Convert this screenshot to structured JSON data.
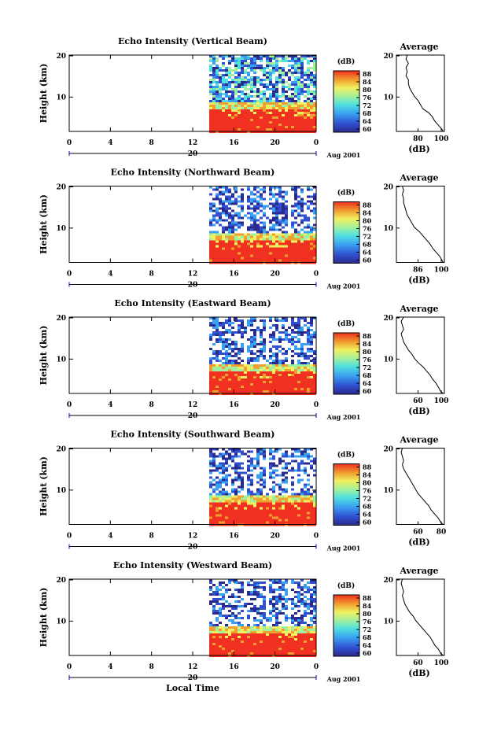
{
  "figure": {
    "xlabel": "Local Time",
    "date_label": "Aug 2001",
    "colorbar_unit": "(dB)",
    "colorbar_ticks": [
      "88",
      "84",
      "80",
      "76",
      "72",
      "68",
      "64",
      "60"
    ],
    "colormap": [
      "#2a2a8c",
      "#3050d0",
      "#3aa0f0",
      "#50e0e0",
      "#a0f0a0",
      "#f0f060",
      "#f0a030",
      "#f03020"
    ]
  },
  "chart_data": [
    {
      "type": "heatmap",
      "title": "Echo Intensity (Vertical Beam)",
      "ylabel": "Height (km)",
      "y_ticks": [
        "20",
        "10"
      ],
      "x_ticks": [
        "0",
        "4",
        "8",
        "12",
        "16",
        "20",
        "0"
      ],
      "x_day_label": "20",
      "average": {
        "title": "Average",
        "xlabel": "(dB)",
        "x_ticks": [
          "80",
          "100"
        ],
        "y_ticks": [
          "20",
          "10"
        ],
        "xlim": [
          60,
          100
        ],
        "ylim": [
          1.5,
          20
        ],
        "profile": [
          [
            1.5,
            99
          ],
          [
            2,
            98
          ],
          [
            3,
            95
          ],
          [
            4,
            92
          ],
          [
            5,
            90
          ],
          [
            6,
            87
          ],
          [
            7,
            82
          ],
          [
            8,
            80
          ],
          [
            9,
            78
          ],
          [
            10,
            75
          ],
          [
            11,
            73
          ],
          [
            12,
            71
          ],
          [
            13,
            70
          ],
          [
            14,
            70
          ],
          [
            15,
            68
          ],
          [
            16,
            69
          ],
          [
            17,
            68
          ],
          [
            18,
            70
          ],
          [
            19,
            68
          ],
          [
            20,
            69
          ]
        ]
      }
    },
    {
      "type": "heatmap",
      "title": "Echo Intensity (Northward Beam)",
      "ylabel": "Height (km)",
      "y_ticks": [
        "20",
        "10"
      ],
      "x_ticks": [
        "0",
        "4",
        "8",
        "12",
        "16",
        "20",
        "0"
      ],
      "x_day_label": "20",
      "average": {
        "title": "Average",
        "xlabel": "(dB)",
        "x_ticks": [
          "86",
          "100"
        ],
        "y_ticks": [
          "20",
          "10"
        ],
        "xlim": [
          60,
          100
        ],
        "ylim": [
          1.5,
          20
        ],
        "profile": [
          [
            1.5,
            99
          ],
          [
            2,
            98
          ],
          [
            3,
            96
          ],
          [
            4,
            93
          ],
          [
            5,
            90
          ],
          [
            6,
            88
          ],
          [
            7,
            85
          ],
          [
            8,
            82
          ],
          [
            9,
            79
          ],
          [
            10,
            75
          ],
          [
            11,
            73
          ],
          [
            12,
            71
          ],
          [
            13,
            69
          ],
          [
            14,
            68
          ],
          [
            15,
            67
          ],
          [
            16,
            66
          ],
          [
            17,
            66
          ],
          [
            18,
            65
          ],
          [
            19,
            66
          ],
          [
            20,
            65
          ]
        ]
      }
    },
    {
      "type": "heatmap",
      "title": "Echo Intensity (Eastward Beam)",
      "ylabel": "Height (km)",
      "y_ticks": [
        "20",
        "10"
      ],
      "x_ticks": [
        "0",
        "4",
        "8",
        "12",
        "16",
        "20",
        "0"
      ],
      "x_day_label": "20",
      "average": {
        "title": "Average",
        "xlabel": "(dB)",
        "x_ticks": [
          "60",
          "100"
        ],
        "y_ticks": [
          "20",
          "10"
        ],
        "xlim": [
          60,
          100
        ],
        "ylim": [
          1.5,
          20
        ],
        "profile": [
          [
            1.5,
            99
          ],
          [
            2,
            97
          ],
          [
            3,
            95
          ],
          [
            4,
            93
          ],
          [
            5,
            90
          ],
          [
            6,
            88
          ],
          [
            7,
            85
          ],
          [
            8,
            82
          ],
          [
            9,
            78
          ],
          [
            10,
            75
          ],
          [
            11,
            73
          ],
          [
            12,
            70
          ],
          [
            13,
            68
          ],
          [
            14,
            66
          ],
          [
            15,
            65
          ],
          [
            16,
            64
          ],
          [
            17,
            66
          ],
          [
            18,
            65
          ],
          [
            19,
            64
          ],
          [
            20,
            66
          ]
        ]
      }
    },
    {
      "type": "heatmap",
      "title": "Echo Intensity (Southward Beam)",
      "ylabel": "Height (km)",
      "y_ticks": [
        "20",
        "10"
      ],
      "x_ticks": [
        "0",
        "4",
        "8",
        "12",
        "16",
        "20",
        "0"
      ],
      "x_day_label": "20",
      "average": {
        "title": "Average",
        "xlabel": "(dB)",
        "x_ticks": [
          "60",
          "80"
        ],
        "y_ticks": [
          "20",
          "10"
        ],
        "xlim": [
          55,
          95
        ],
        "ylim": [
          1.5,
          20
        ],
        "profile": [
          [
            1.5,
            94
          ],
          [
            2,
            92
          ],
          [
            3,
            90
          ],
          [
            4,
            87
          ],
          [
            5,
            84
          ],
          [
            6,
            82
          ],
          [
            7,
            79
          ],
          [
            8,
            76
          ],
          [
            9,
            73
          ],
          [
            10,
            71
          ],
          [
            11,
            69
          ],
          [
            12,
            67
          ],
          [
            13,
            65
          ],
          [
            14,
            63
          ],
          [
            15,
            61
          ],
          [
            16,
            60
          ],
          [
            17,
            61
          ],
          [
            18,
            60
          ],
          [
            19,
            59
          ],
          [
            20,
            60
          ]
        ]
      }
    },
    {
      "type": "heatmap",
      "title": "Echo Intensity (Westward Beam)",
      "ylabel": "Height (km)",
      "y_ticks": [
        "20",
        "10"
      ],
      "x_ticks": [
        "0",
        "4",
        "8",
        "12",
        "16",
        "20",
        "0"
      ],
      "x_day_label": "20",
      "average": {
        "title": "Average",
        "xlabel": "(dB)",
        "x_ticks": [
          "60",
          "100"
        ],
        "y_ticks": [
          "20",
          "10"
        ],
        "xlim": [
          60,
          100
        ],
        "ylim": [
          1.5,
          20
        ],
        "profile": [
          [
            1.5,
            99
          ],
          [
            2,
            97
          ],
          [
            3,
            95
          ],
          [
            4,
            92
          ],
          [
            5,
            90
          ],
          [
            6,
            88
          ],
          [
            7,
            85
          ],
          [
            8,
            82
          ],
          [
            9,
            79
          ],
          [
            10,
            76
          ],
          [
            11,
            74
          ],
          [
            12,
            71
          ],
          [
            13,
            69
          ],
          [
            14,
            67
          ],
          [
            15,
            66
          ],
          [
            16,
            65
          ],
          [
            17,
            66
          ],
          [
            18,
            65
          ],
          [
            19,
            64
          ],
          [
            20,
            65
          ]
        ]
      }
    }
  ]
}
